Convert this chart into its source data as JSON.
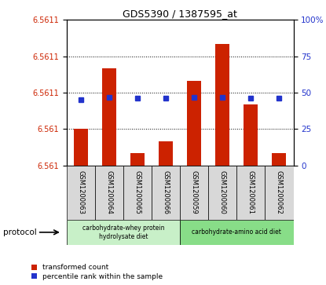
{
  "title": "GDS5390 / 1387595_at",
  "samples": [
    "GSM1200063",
    "GSM1200064",
    "GSM1200065",
    "GSM1200066",
    "GSM1200059",
    "GSM1200060",
    "GSM1200061",
    "GSM1200062"
  ],
  "transformed_counts": [
    6.56103,
    6.56108,
    6.56101,
    6.56102,
    6.56107,
    6.5611,
    6.56105,
    6.56101
  ],
  "percentile_ranks": [
    45,
    47,
    46,
    46,
    47,
    47,
    46,
    46
  ],
  "ylim_left": [
    6.561,
    6.56112
  ],
  "ylim_right": [
    0,
    100
  ],
  "yticks_right": [
    0,
    25,
    50,
    75,
    100
  ],
  "bar_color": "#cc2200",
  "dot_color": "#2233cc",
  "bar_bottom": 6.561,
  "group1_indices": [
    0,
    1,
    2,
    3
  ],
  "group2_indices": [
    4,
    5,
    6,
    7
  ],
  "group1_label": "carbohydrate-whey protein\nhydrolysate diet",
  "group2_label": "carbohydrate-amino acid diet",
  "group1_color": "#c8f0c8",
  "group2_color": "#88dd88",
  "sample_bg_color": "#d8d8d8",
  "legend_bar": "transformed count",
  "legend_dot": "percentile rank within the sample",
  "protocol_label": "protocol"
}
